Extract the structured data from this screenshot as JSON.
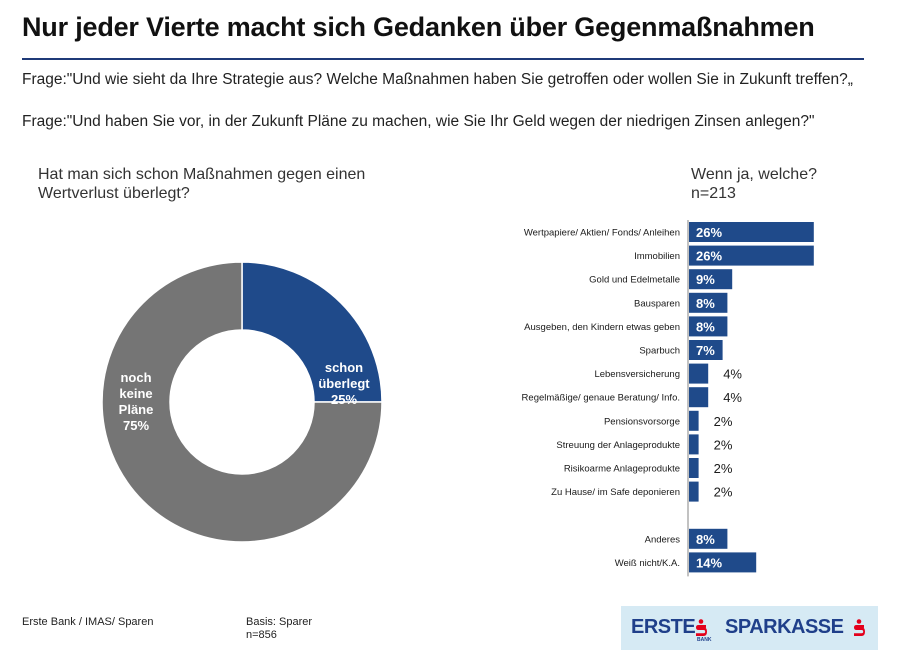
{
  "title": "Nur jeder Vierte macht sich Gedanken über Gegenmaßnahmen",
  "question1": "Frage:\"Und wie sieht da Ihre Strategie aus? Welche Maßnahmen haben Sie getroffen oder wollen Sie in Zukunft treffen?„",
  "question2": "Frage:\"Und haben Sie vor, in der Zukunft Pläne zu machen, wie Sie Ihr Geld wegen der niedrigen Zinsen anlegen?\"",
  "footer": {
    "source": "Erste Bank / IMAS/ Sparen",
    "basis_label": "Basis: Sparer",
    "basis_n": "n=856"
  },
  "logo": {
    "erste": "ERSTE",
    "sparkasse": "SPARKASSE",
    "bank_small": "BANK"
  },
  "colors": {
    "navy": "#1f4a8a",
    "gray": "#757575",
    "rule": "#1f3a78"
  },
  "chart_data": [
    {
      "type": "pie",
      "donut": true,
      "title": "Hat man sich schon Maßnahmen gegen einen Wertverlust überlegt?",
      "slices": [
        {
          "label": "schon überlegt",
          "value": 25,
          "display": "25%",
          "color": "#1f4a8a"
        },
        {
          "label": "noch keine Pläne",
          "value": 75,
          "display": "75%",
          "color": "#757575"
        }
      ]
    },
    {
      "type": "bar",
      "orientation": "horizontal",
      "title": "Wenn ja, welche?",
      "n_label": "n=213",
      "unit": "%",
      "categories": [
        "Wertpapiere/ Aktien/ Fonds/ Anleihen",
        "Immobilien",
        "Gold und Edelmetalle",
        "Bausparen",
        "Ausgeben, den Kindern etwas geben",
        "Sparbuch",
        "Lebensversicherung",
        "Regelmäßige/ genaue Beratung/ Info.",
        "Pensionsvorsorge",
        "Streuung der Anlageprodukte",
        "Risikoarme Anlageprodukte",
        "Zu Hause/ im Safe deponieren",
        "Anderes",
        "Weiß nicht/K.A."
      ],
      "values": [
        26,
        26,
        9,
        8,
        8,
        7,
        4,
        4,
        2,
        2,
        2,
        2,
        8,
        14
      ],
      "value_labels": [
        "26%",
        "26%",
        "9%",
        "8%",
        "8%",
        "7%",
        "4%",
        "4%",
        "2%",
        "2%",
        "2%",
        "2%",
        "8%",
        "14%"
      ],
      "color": "#1f4a8a"
    }
  ]
}
